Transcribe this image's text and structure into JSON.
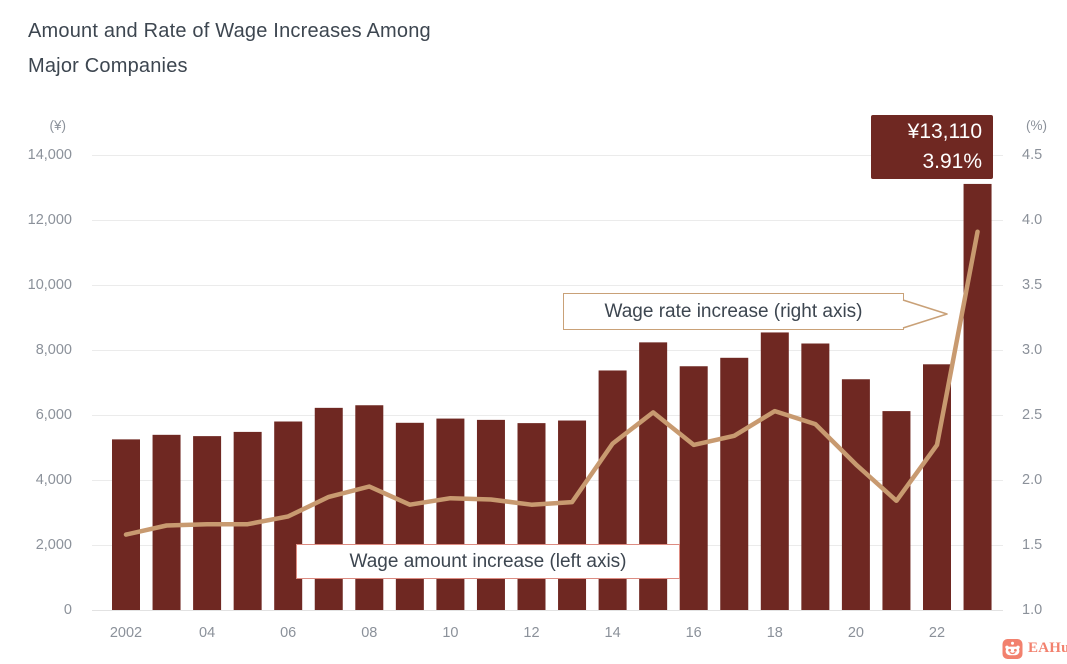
{
  "page": {
    "title_line1": "Amount and Rate of Wage Increases Among",
    "title_line2": "Major Companies"
  },
  "chart_data": {
    "type": "bar+line combo",
    "title": "Amount and Rate of Wage Increases Among Major Companies",
    "categories": [
      "2002",
      "2003",
      "2004",
      "2005",
      "2006",
      "2007",
      "2008",
      "2009",
      "2010",
      "2011",
      "2012",
      "2013",
      "2014",
      "2015",
      "2016",
      "2017",
      "2018",
      "2019",
      "2020",
      "2021",
      "2022",
      "2023"
    ],
    "x_tick_labels": [
      "2002",
      "04",
      "06",
      "08",
      "10",
      "12",
      "14",
      "16",
      "18",
      "20",
      "22"
    ],
    "series": [
      {
        "name": "Wage amount increase (left axis)",
        "type": "bar",
        "axis": "left",
        "unit": "¥",
        "color": "#6f2822",
        "values": [
          5250,
          5390,
          5350,
          5480,
          5800,
          6220,
          6300,
          5760,
          5890,
          5850,
          5750,
          5830,
          7370,
          8235,
          7500,
          7760,
          8540,
          8200,
          7100,
          6120,
          7560,
          13110
        ]
      },
      {
        "name": "Wage rate increase (right axis)",
        "type": "line",
        "axis": "right",
        "unit": "%",
        "color": "#c89a70",
        "values": [
          1.58,
          1.65,
          1.66,
          1.66,
          1.72,
          1.87,
          1.95,
          1.81,
          1.86,
          1.85,
          1.81,
          1.83,
          2.28,
          2.52,
          2.27,
          2.34,
          2.53,
          2.43,
          2.12,
          1.84,
          2.27,
          3.91
        ]
      }
    ],
    "left_axis": {
      "unit_label": "(¥)",
      "min": 0,
      "max": 14000,
      "tick_step": 2000,
      "tick_labels": [
        "0",
        "2,000",
        "4,000",
        "6,000",
        "8,000",
        "10,000",
        "12,000",
        "14,000"
      ]
    },
    "right_axis": {
      "unit_label": "(%)",
      "min": 1.0,
      "max": 4.5,
      "tick_step": 0.5,
      "tick_labels": [
        "1.0",
        "1.5",
        "2.0",
        "2.5",
        "3.0",
        "3.5",
        "4.0",
        "4.5"
      ]
    },
    "grid": true,
    "legend_position": "inline callout labels on plot",
    "annotation": {
      "year": "2023",
      "amount": "¥13,110",
      "rate": "3.91%"
    }
  },
  "labels": {
    "rate_callout": "Wage rate increase (right axis)",
    "amount_callout": "Wage amount increase (left axis)"
  },
  "watermark": {
    "text": "EAHub",
    "color": "#f2816e"
  },
  "colors": {
    "bar": "#6f2822",
    "line": "#c89a70",
    "annotation_bg": "#6f2822",
    "annotation_text": "#ffffff",
    "rate_box_border": "#c9a178",
    "amount_box_border": "#dd8c82",
    "title_text": "#3d4650",
    "axis_text": "#8b919a",
    "gridline": "#ebebeb",
    "axis_line": "#e2e2e2"
  }
}
